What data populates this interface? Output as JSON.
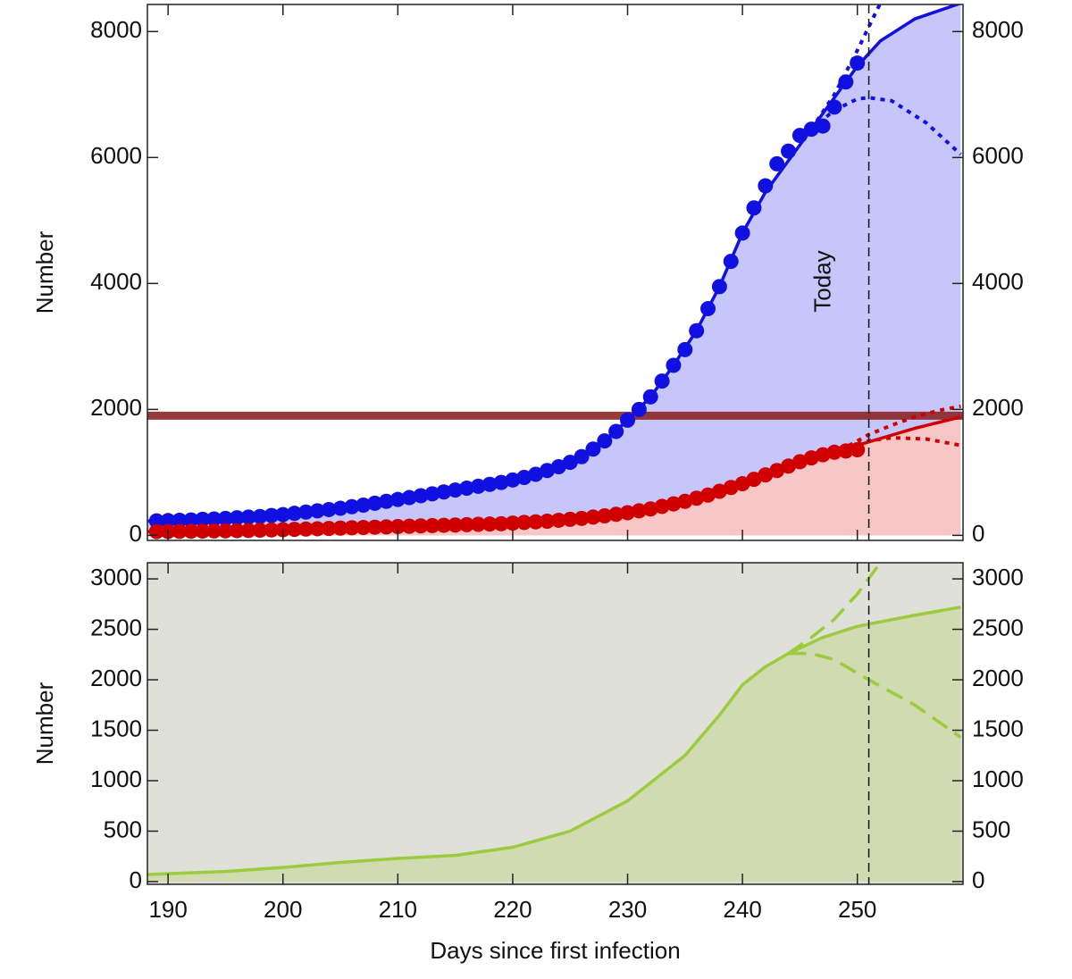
{
  "chart_data": [
    {
      "type": "line",
      "ylabel": "Number",
      "xlim": [
        188.2,
        259.2
      ],
      "ylim": [
        -80,
        8430
      ],
      "xticks": [
        190,
        200,
        210,
        220,
        230,
        240,
        250
      ],
      "xtick_labels": false,
      "yticks": [
        0,
        2000,
        4000,
        6000,
        8000
      ],
      "hline": {
        "value": 1900,
        "color": "#8b2525"
      },
      "annotations": [
        {
          "text": "Today",
          "x": 251
        }
      ],
      "series": [
        {
          "style": "solid",
          "color": "#1010e0",
          "fill": "#c6c6fb",
          "x": [
            188,
            195,
            200,
            205,
            210,
            215,
            220,
            223,
            226,
            228,
            230,
            232,
            234,
            236,
            238,
            240,
            242,
            244,
            246,
            248,
            250,
            252,
            255,
            259
          ],
          "values": [
            225,
            265,
            330,
            430,
            570,
            720,
            880,
            1030,
            1250,
            1500,
            1830,
            2200,
            2700,
            3250,
            3950,
            4800,
            5450,
            5950,
            6450,
            6950,
            7450,
            7850,
            8200,
            8450
          ]
        },
        {
          "style": "solid",
          "color": "#d00000",
          "fill": "#f8c6c6",
          "x": [
            188,
            195,
            200,
            205,
            210,
            215,
            220,
            225,
            230,
            235,
            240,
            245,
            250,
            255,
            259
          ],
          "values": [
            58,
            72,
            90,
            115,
            140,
            165,
            190,
            240,
            340,
            520,
            800,
            1120,
            1430,
            1700,
            1880
          ]
        },
        {
          "style": "dotted",
          "color": "#1010e0",
          "x": [
            246,
            248,
            250,
            252
          ],
          "values": [
            6450,
            7000,
            7700,
            8450
          ]
        },
        {
          "style": "dotted",
          "color": "#1010e0",
          "x": [
            246,
            248,
            250,
            251,
            253,
            256,
            259
          ],
          "values": [
            6450,
            6750,
            6930,
            6950,
            6900,
            6550,
            6050
          ]
        },
        {
          "style": "dotted",
          "color": "#d00000",
          "x": [
            247,
            249,
            251,
            253,
            255,
            257,
            259
          ],
          "values": [
            1200,
            1400,
            1600,
            1750,
            1880,
            1980,
            2050
          ]
        },
        {
          "style": "dotted",
          "color": "#d00000",
          "x": [
            250,
            251,
            253,
            256,
            259
          ],
          "values": [
            1450,
            1500,
            1550,
            1530,
            1430
          ]
        },
        {
          "style": "points",
          "color": "#1010e0",
          "x": [
            189,
            190,
            191,
            192,
            193,
            194,
            195,
            196,
            197,
            198,
            199,
            200,
            201,
            202,
            203,
            204,
            205,
            206,
            207,
            208,
            209,
            210,
            211,
            212,
            213,
            214,
            215,
            216,
            217,
            218,
            219,
            220,
            221,
            222,
            223,
            224,
            225,
            226,
            227,
            228,
            229,
            230,
            231,
            232,
            233,
            234,
            235,
            236,
            237,
            238,
            239,
            240,
            241,
            242,
            243,
            244,
            245,
            246,
            247,
            248,
            249,
            250
          ],
          "values": [
            230,
            235,
            240,
            245,
            255,
            260,
            270,
            280,
            290,
            300,
            315,
            330,
            350,
            370,
            390,
            410,
            430,
            455,
            480,
            510,
            540,
            570,
            600,
            630,
            660,
            690,
            720,
            750,
            780,
            810,
            840,
            880,
            920,
            970,
            1030,
            1090,
            1160,
            1250,
            1370,
            1500,
            1650,
            1830,
            2000,
            2200,
            2450,
            2700,
            2950,
            3250,
            3600,
            3950,
            4350,
            4800,
            5200,
            5550,
            5900,
            6100,
            6350,
            6450,
            6500,
            6800,
            7200,
            7500
          ]
        },
        {
          "style": "points",
          "color": "#d00000",
          "x": [
            189,
            190,
            191,
            192,
            193,
            194,
            195,
            196,
            197,
            198,
            199,
            200,
            201,
            202,
            203,
            204,
            205,
            206,
            207,
            208,
            209,
            210,
            211,
            212,
            213,
            214,
            215,
            216,
            217,
            218,
            219,
            220,
            221,
            222,
            223,
            224,
            225,
            226,
            227,
            228,
            229,
            230,
            231,
            232,
            233,
            234,
            235,
            236,
            237,
            238,
            239,
            240,
            241,
            242,
            243,
            244,
            245,
            246,
            247,
            248,
            249,
            250
          ],
          "values": [
            60,
            62,
            64,
            66,
            68,
            70,
            72,
            75,
            78,
            82,
            86,
            90,
            95,
            100,
            105,
            110,
            115,
            120,
            125,
            130,
            135,
            140,
            145,
            150,
            155,
            160,
            165,
            170,
            175,
            180,
            185,
            195,
            205,
            215,
            225,
            240,
            255,
            270,
            290,
            310,
            335,
            360,
            390,
            420,
            460,
            500,
            540,
            590,
            640,
            700,
            760,
            820,
            890,
            960,
            1030,
            1100,
            1170,
            1230,
            1280,
            1320,
            1340,
            1360
          ]
        }
      ]
    },
    {
      "type": "line",
      "ylabel": "Number",
      "xlabel": "Days since first infection",
      "background": "#dfe0d8",
      "xlim": [
        188.2,
        259.2
      ],
      "ylim": [
        -27,
        3160
      ],
      "xticks": [
        190,
        200,
        210,
        220,
        230,
        240,
        250
      ],
      "xtick_labels": true,
      "yticks": [
        0,
        500,
        1000,
        1500,
        2000,
        2500,
        3000
      ],
      "annotations": [
        {
          "x": 251
        }
      ],
      "series": [
        {
          "style": "solid",
          "color": "#9ccb3e",
          "fill": "#d0dbb2",
          "x": [
            188,
            195,
            200,
            205,
            210,
            215,
            220,
            225,
            230,
            235,
            238,
            240,
            242,
            244,
            247,
            250,
            255,
            259
          ],
          "values": [
            70,
            100,
            140,
            190,
            230,
            260,
            340,
            500,
            800,
            1250,
            1650,
            1950,
            2130,
            2260,
            2420,
            2530,
            2640,
            2720
          ]
        },
        {
          "style": "dashed",
          "color": "#9ccb3e",
          "x": [
            244,
            246,
            248,
            250,
            252
          ],
          "values": [
            2260,
            2420,
            2600,
            2850,
            3160
          ]
        },
        {
          "style": "dashed",
          "color": "#9ccb3e",
          "x": [
            244,
            246,
            248,
            251,
            255,
            259
          ],
          "values": [
            2260,
            2260,
            2200,
            2000,
            1750,
            1430
          ]
        }
      ]
    }
  ]
}
